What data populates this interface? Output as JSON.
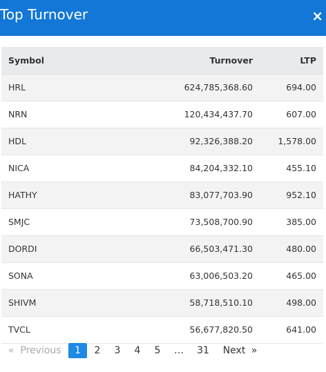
{
  "header": {
    "title": "Top Turnover",
    "close_label": "×"
  },
  "table": {
    "columns": [
      "Symbol",
      "Turnover",
      "LTP"
    ],
    "rows": [
      {
        "symbol": "HRL",
        "turnover": "624,785,368.60",
        "ltp": "694.00"
      },
      {
        "symbol": "NRN",
        "turnover": "120,434,437.70",
        "ltp": "607.00"
      },
      {
        "symbol": "HDL",
        "turnover": "92,326,388.20",
        "ltp": "1,578.00"
      },
      {
        "symbol": "NICA",
        "turnover": "84,204,332.10",
        "ltp": "455.10"
      },
      {
        "symbol": "HATHY",
        "turnover": "83,077,703.90",
        "ltp": "952.10"
      },
      {
        "symbol": "SMJC",
        "turnover": "73,508,700.90",
        "ltp": "385.00"
      },
      {
        "symbol": "DORDI",
        "turnover": "66,503,471.30",
        "ltp": "480.00"
      },
      {
        "symbol": "SONA",
        "turnover": "63,006,503.20",
        "ltp": "465.00"
      },
      {
        "symbol": "SHIVM",
        "turnover": "58,718,510.10",
        "ltp": "498.00"
      },
      {
        "symbol": "TVCL",
        "turnover": "56,677,820.50",
        "ltp": "641.00"
      }
    ]
  },
  "pagination": {
    "first_arrow": "«",
    "previous": "Previous",
    "pages": [
      "1",
      "2",
      "3",
      "4",
      "5"
    ],
    "ellipsis": "…",
    "last_page": "31",
    "next": "Next",
    "last_arrow": "»",
    "current": "1"
  },
  "colors": {
    "header_bg": "#1277d6",
    "active_page": "#1e88e5"
  }
}
